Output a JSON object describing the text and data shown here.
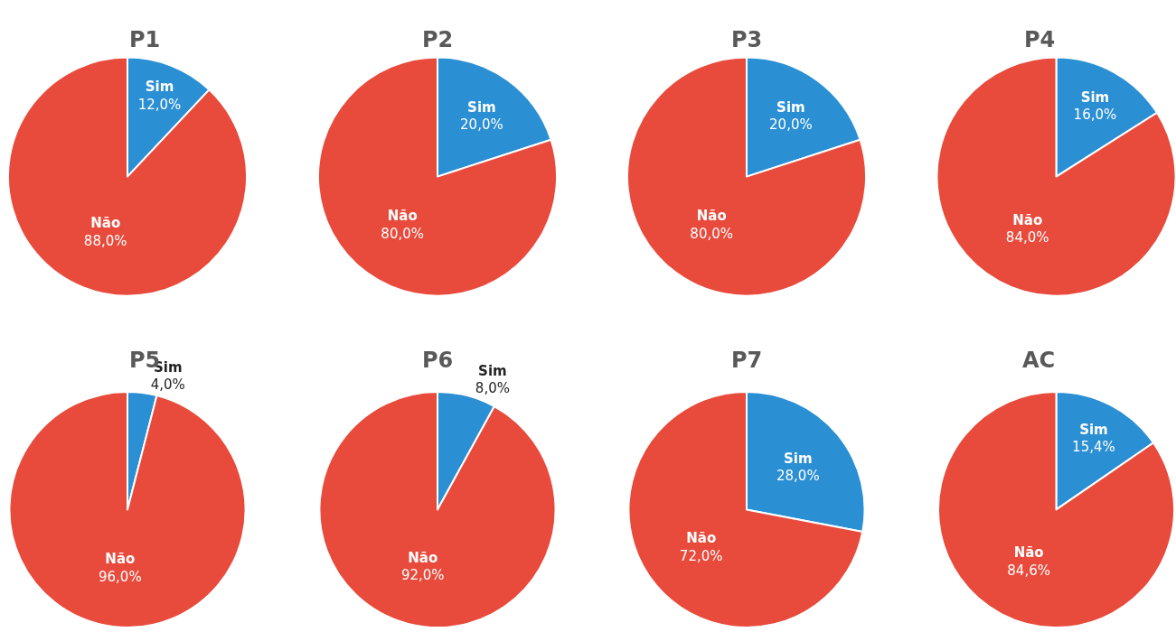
{
  "chart_data": [
    {
      "type": "pie",
      "title": "P1",
      "categories": [
        "Sim",
        "Não"
      ],
      "values": [
        12.0,
        88.0
      ],
      "colors": [
        "#2b8fd4",
        "#e84a3c"
      ],
      "value_labels": [
        "12,0%",
        "88,0%"
      ]
    },
    {
      "type": "pie",
      "title": "P2",
      "categories": [
        "Sim",
        "Não"
      ],
      "values": [
        20.0,
        80.0
      ],
      "colors": [
        "#2b8fd4",
        "#e84a3c"
      ],
      "value_labels": [
        "20,0%",
        "80,0%"
      ]
    },
    {
      "type": "pie",
      "title": "P3",
      "categories": [
        "Sim",
        "Não"
      ],
      "values": [
        20.0,
        80.0
      ],
      "colors": [
        "#2b8fd4",
        "#e84a3c"
      ],
      "value_labels": [
        "20,0%",
        "80,0%"
      ]
    },
    {
      "type": "pie",
      "title": "P4",
      "categories": [
        "Sim",
        "Não"
      ],
      "values": [
        16.0,
        84.0
      ],
      "colors": [
        "#2b8fd4",
        "#e84a3c"
      ],
      "value_labels": [
        "16,0%",
        "84,0%"
      ]
    },
    {
      "type": "pie",
      "title": "P5",
      "categories": [
        "Sim",
        "Não"
      ],
      "values": [
        4.0,
        96.0
      ],
      "colors": [
        "#2b8fd4",
        "#e84a3c"
      ],
      "value_labels": [
        "4,0%",
        "96,0%"
      ]
    },
    {
      "type": "pie",
      "title": "P6",
      "categories": [
        "Sim",
        "Não"
      ],
      "values": [
        8.0,
        92.0
      ],
      "colors": [
        "#2b8fd4",
        "#e84a3c"
      ],
      "value_labels": [
        "8,0%",
        "92,0%"
      ]
    },
    {
      "type": "pie",
      "title": "P7",
      "categories": [
        "Sim",
        "Não"
      ],
      "values": [
        28.0,
        72.0
      ],
      "colors": [
        "#2b8fd4",
        "#e84a3c"
      ],
      "value_labels": [
        "28,0%",
        "72,0%"
      ]
    },
    {
      "type": "pie",
      "title": "AC",
      "categories": [
        "Sim",
        "Não"
      ],
      "values": [
        15.4,
        84.6
      ],
      "colors": [
        "#2b8fd4",
        "#e84a3c"
      ],
      "value_labels": [
        "15,4%",
        "84,6%"
      ]
    }
  ]
}
